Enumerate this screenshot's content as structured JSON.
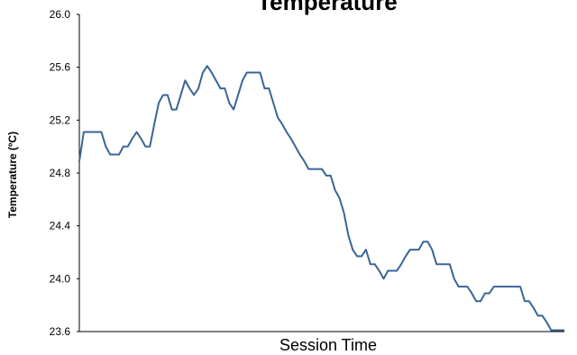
{
  "chart_data": {
    "type": "line",
    "title": "Temperature",
    "xlabel": "Session Time",
    "ylabel": "Temperature (ºC)",
    "ylim": [
      23.6,
      26.0
    ],
    "yticks": [
      "26.0",
      "25.6",
      "25.2",
      "24.8",
      "24.4",
      "24.0",
      "23.6"
    ],
    "grid": false,
    "line_color": "#3a6596",
    "series": [
      {
        "values": [
          24.89,
          25.11,
          25.11,
          25.11,
          25.11,
          25.11,
          25.0,
          24.94,
          24.94,
          24.94,
          25.0,
          25.0,
          25.06,
          25.11,
          25.06,
          25.0,
          25.0,
          25.17,
          25.33,
          25.39,
          25.39,
          25.28,
          25.28,
          25.39,
          25.5,
          25.44,
          25.39,
          25.44,
          25.56,
          25.61,
          25.56,
          25.5,
          25.44,
          25.44,
          25.33,
          25.28,
          25.39,
          25.5,
          25.56,
          25.56,
          25.56,
          25.56,
          25.44,
          25.44,
          25.33,
          25.22,
          25.17,
          25.11,
          25.06,
          25.0,
          24.94,
          24.89,
          24.83,
          24.83,
          24.83,
          24.83,
          24.78,
          24.78,
          24.67,
          24.61,
          24.5,
          24.33,
          24.22,
          24.17,
          24.17,
          24.22,
          24.11,
          24.11,
          24.06,
          24.0,
          24.06,
          24.06,
          24.06,
          24.11,
          24.17,
          24.22,
          24.22,
          24.22,
          24.28,
          24.28,
          24.22,
          24.11,
          24.11,
          24.11,
          24.11,
          24.0,
          23.94,
          23.94,
          23.94,
          23.89,
          23.83,
          23.83,
          23.89,
          23.89,
          23.94,
          23.94,
          23.94,
          23.94,
          23.94,
          23.94,
          23.94,
          23.83,
          23.83,
          23.78,
          23.72,
          23.72,
          23.67,
          23.61,
          23.61,
          23.61,
          23.61
        ]
      }
    ]
  }
}
